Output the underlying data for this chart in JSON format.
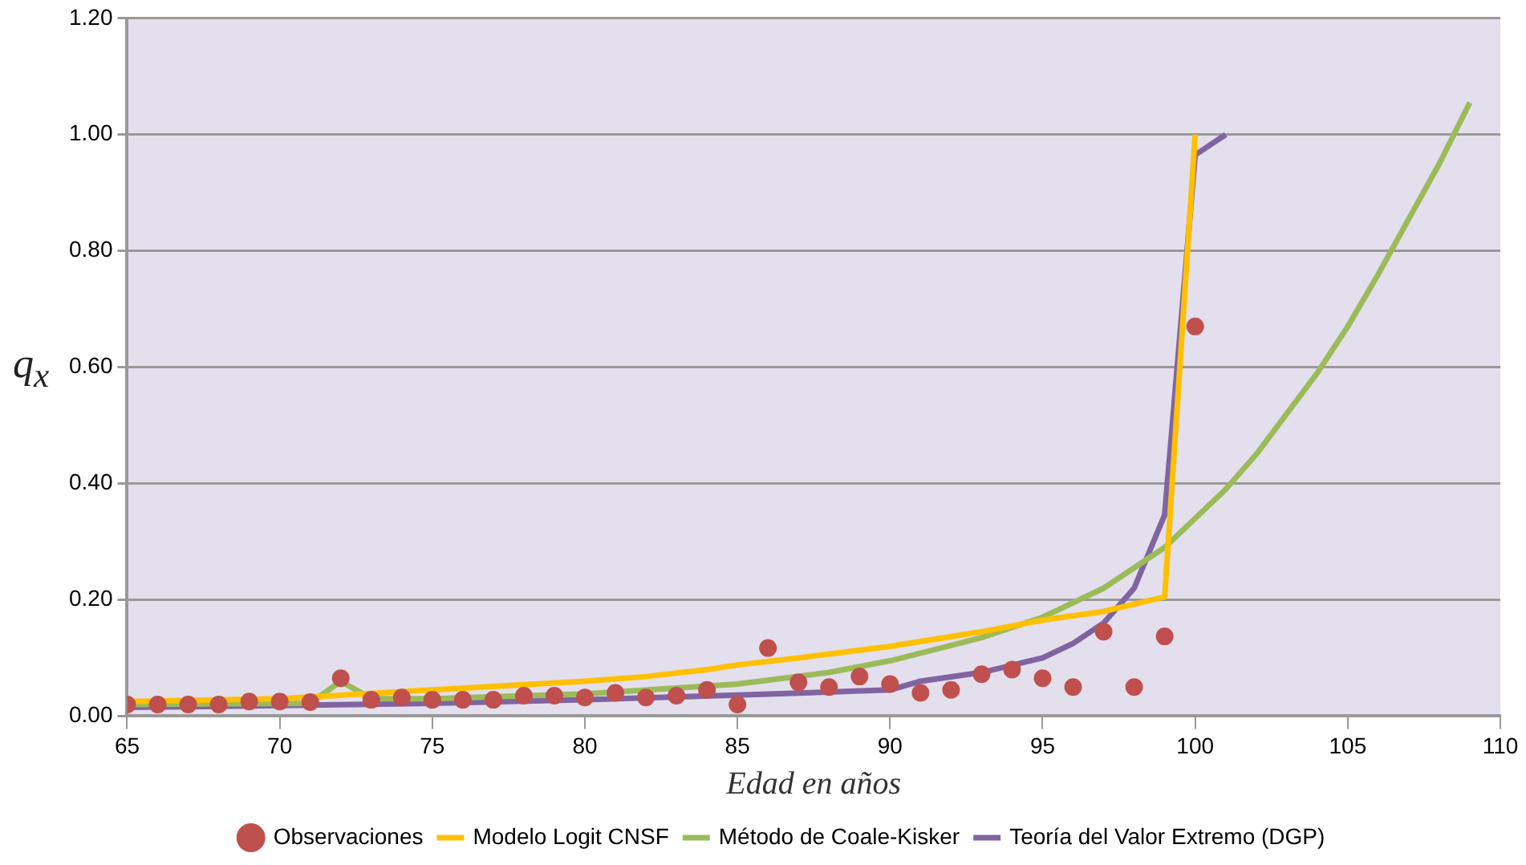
{
  "chart_data": {
    "type": "line",
    "xlabel": "Edad en años",
    "ylabel": "q$_{x}$",
    "xlim": [
      65,
      110
    ],
    "xticks": [
      65,
      70,
      75,
      80,
      85,
      90,
      95,
      100,
      105,
      110
    ],
    "ylim": [
      0,
      1.2
    ],
    "yticks": [
      {
        "value": 0,
        "label": "0.00"
      },
      {
        "value": 0.2,
        "label": "0.20"
      },
      {
        "value": 0.4,
        "label": "0.40"
      },
      {
        "value": 0.6,
        "label": "0.60"
      },
      {
        "value": 0.8,
        "label": "0.80"
      },
      {
        "value": 1,
        "label": "1.00"
      },
      {
        "value": 1.2,
        "label": "1.20"
      }
    ],
    "grid": "y",
    "legend": "bottom",
    "line_style": "solid",
    "series": [
      {
        "name": "Observaciones",
        "type": "scatter",
        "marker": "circle",
        "color": "#c0504d",
        "x": [
          65,
          66,
          67,
          68,
          69,
          70,
          71,
          72,
          73,
          74,
          75,
          76,
          77,
          78,
          79,
          80,
          81,
          82,
          83,
          84,
          85,
          86,
          87,
          88,
          89,
          90,
          91,
          92,
          93,
          94,
          95,
          96,
          97,
          98,
          99,
          100
        ],
        "values": [
          0.02,
          0.02,
          0.02,
          0.02,
          0.025,
          0.025,
          0.024,
          0.065,
          0.028,
          0.032,
          0.028,
          0.028,
          0.028,
          0.035,
          0.035,
          0.032,
          0.04,
          0.032,
          0.035,
          0.045,
          0.02,
          0.117,
          0.058,
          0.05,
          0.068,
          0.055,
          0.04,
          0.045,
          0.072,
          0.08,
          0.065,
          0.05,
          0.145,
          0.05,
          0.137,
          0.67
        ]
      },
      {
        "name": "Modelo Logit CNSF",
        "marker": "none",
        "color": "#ffc000",
        "x": [
          65,
          70,
          75,
          80,
          82,
          84,
          85,
          87,
          90,
          93,
          95,
          97,
          99,
          100
        ],
        "values": [
          0.025,
          0.03,
          0.045,
          0.06,
          0.068,
          0.08,
          0.088,
          0.1,
          0.12,
          0.145,
          0.165,
          0.18,
          0.205,
          1.0
        ]
      },
      {
        "name": "Método de Coale-Kisker",
        "marker": "none",
        "color": "#9bbb59",
        "x": [
          65,
          71,
          72,
          73,
          75,
          80,
          85,
          88,
          90,
          93,
          95,
          97,
          99,
          100,
          101,
          102,
          103,
          104,
          105,
          106,
          107,
          108,
          109
        ],
        "values": [
          0.02,
          0.022,
          0.06,
          0.03,
          0.03,
          0.038,
          0.055,
          0.075,
          0.095,
          0.135,
          0.17,
          0.22,
          0.29,
          0.34,
          0.39,
          0.45,
          0.52,
          0.59,
          0.67,
          0.76,
          0.855,
          0.95,
          1.055
        ]
      },
      {
        "name": "Teoría del Valor Extremo (DGP)",
        "marker": "none",
        "color": "#8064a2",
        "x": [
          65,
          70,
          75,
          80,
          85,
          90,
          91,
          93,
          95,
          96,
          97,
          98,
          99,
          100,
          101
        ],
        "values": [
          0.015,
          0.018,
          0.022,
          0.028,
          0.036,
          0.045,
          0.06,
          0.075,
          0.1,
          0.125,
          0.16,
          0.22,
          0.346,
          0.965,
          1.0
        ]
      }
    ]
  }
}
